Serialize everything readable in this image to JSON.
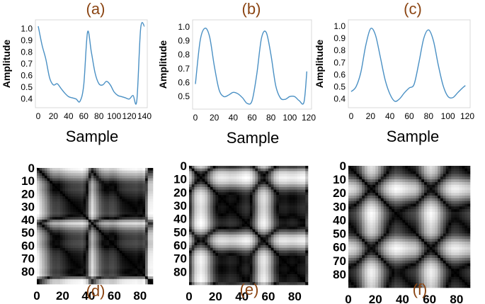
{
  "chart_data": [
    {
      "panel": "(a)",
      "type": "line",
      "xlabel": "Sample",
      "ylabel": "Amplitude",
      "xlim": [
        0,
        140
      ],
      "ylim": [
        0.35,
        1.05
      ],
      "xticks": [
        "0",
        "20",
        "40",
        "60",
        "80",
        "100",
        "120",
        "140"
      ],
      "yticks": [
        "0.4",
        "0.5",
        "0.6",
        "0.7",
        "0.8",
        "0.9",
        "1.0"
      ],
      "color": "#4a90c4",
      "x": [
        0,
        5,
        10,
        15,
        20,
        25,
        30,
        35,
        40,
        45,
        50,
        55,
        60,
        65,
        70,
        75,
        80,
        85,
        90,
        95,
        100,
        105,
        110,
        115,
        120,
        125,
        130,
        135,
        140
      ],
      "y": [
        1.02,
        0.86,
        0.74,
        0.58,
        0.52,
        0.53,
        0.49,
        0.45,
        0.42,
        0.41,
        0.4,
        0.38,
        0.52,
        0.97,
        0.8,
        0.62,
        0.53,
        0.52,
        0.55,
        0.52,
        0.46,
        0.43,
        0.42,
        0.41,
        0.4,
        0.43,
        0.39,
        1.0,
        1.02
      ]
    },
    {
      "panel": "(b)",
      "type": "line",
      "xlabel": "Sample",
      "ylabel": "Amplitude",
      "xlim": [
        0,
        120
      ],
      "ylim": [
        0.43,
        1.03
      ],
      "xticks": [
        "0",
        "20",
        "40",
        "60",
        "80",
        "100",
        "120"
      ],
      "yticks": [
        "0.5",
        "0.6",
        "0.7",
        "0.8",
        "0.9",
        "1.0"
      ],
      "color": "#4a90c4",
      "x": [
        0,
        5,
        10,
        15,
        20,
        25,
        30,
        35,
        40,
        45,
        50,
        55,
        60,
        65,
        70,
        75,
        80,
        85,
        90,
        95,
        100,
        105,
        110,
        115,
        118
      ],
      "y": [
        0.59,
        0.9,
        0.99,
        0.93,
        0.72,
        0.55,
        0.5,
        0.51,
        0.53,
        0.52,
        0.49,
        0.45,
        0.47,
        0.66,
        0.92,
        0.96,
        0.8,
        0.58,
        0.49,
        0.48,
        0.5,
        0.5,
        0.47,
        0.46,
        0.68
      ]
    },
    {
      "panel": "(c)",
      "type": "line",
      "xlabel": "Sample",
      "ylabel": "Amplitude",
      "xlim": [
        0,
        120
      ],
      "ylim": [
        0.35,
        1.03
      ],
      "xticks": [
        "0",
        "20",
        "40",
        "60",
        "80",
        "100",
        "120"
      ],
      "yticks": [
        "0.4",
        "0.5",
        "0.6",
        "0.7",
        "0.8",
        "0.9",
        "1.0"
      ],
      "color": "#4a90c4",
      "x": [
        0,
        5,
        10,
        15,
        20,
        25,
        30,
        35,
        40,
        45,
        50,
        55,
        60,
        65,
        70,
        75,
        80,
        85,
        90,
        95,
        100,
        105,
        110,
        115,
        118
      ],
      "y": [
        0.46,
        0.5,
        0.62,
        0.84,
        0.98,
        0.93,
        0.75,
        0.56,
        0.44,
        0.38,
        0.4,
        0.45,
        0.49,
        0.52,
        0.7,
        0.9,
        0.97,
        0.88,
        0.68,
        0.51,
        0.42,
        0.41,
        0.45,
        0.49,
        0.51
      ]
    },
    {
      "panel": "(d)",
      "type": "heatmap",
      "description": "recurrence plot (grayscale distance matrix)",
      "size": 90,
      "xticks": [
        "0",
        "20",
        "40",
        "60",
        "80"
      ],
      "yticks": [
        "0",
        "10",
        "20",
        "30",
        "40",
        "50",
        "60",
        "70",
        "80"
      ],
      "source_panel": 0
    },
    {
      "panel": "(e)",
      "type": "heatmap",
      "description": "recurrence plot (grayscale distance matrix)",
      "size": 90,
      "xticks": [
        "0",
        "20",
        "40",
        "60",
        "80"
      ],
      "yticks": [
        "0",
        "10",
        "20",
        "30",
        "40",
        "50",
        "60",
        "70",
        "80"
      ],
      "source_panel": 1
    },
    {
      "panel": "(f)",
      "type": "heatmap",
      "description": "recurrence plot (grayscale distance matrix)",
      "size": 90,
      "xticks": [
        "0",
        "20",
        "40",
        "60",
        "80"
      ],
      "yticks": [
        "0",
        "10",
        "20",
        "30",
        "40",
        "50",
        "60",
        "70",
        "80"
      ],
      "source_panel": 2
    }
  ]
}
